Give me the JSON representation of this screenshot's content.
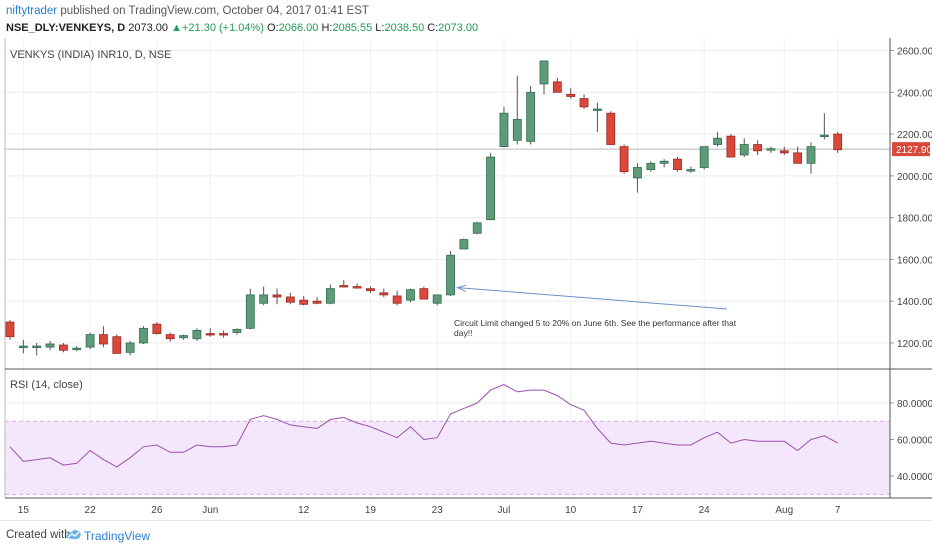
{
  "header": {
    "author": "niftytrader",
    "published_text": "published on TradingView.com, October 04, 2017 01:41 EST",
    "symbol": "NSE_DLY:VENKEYS, D",
    "last": "2073.00",
    "change": "+21.30 (+1.04%)",
    "open_label": "O:",
    "open": "2066.00",
    "high_label": "H:",
    "high": "2085.55",
    "low_label": "L:",
    "low": "2038.50",
    "close_label": "C:",
    "close": "2073.00"
  },
  "footer": {
    "created_with": "Created with",
    "brand": "TradingView"
  },
  "chart_data": {
    "type": "candlestick",
    "title": "VENKYS (INDIA) INR10, D, NSE",
    "price_axis": {
      "ylim": [
        1080,
        2660
      ],
      "ticks": [
        1200,
        1400,
        1600,
        1800,
        2000,
        2200,
        2400,
        2600
      ],
      "tick_labels": [
        "1200.00",
        "1400.00",
        "1600.00",
        "1800.00",
        "2000.00",
        "2200.00",
        "2400.00",
        "2600.00"
      ]
    },
    "last_price_label": "2127.90",
    "last_price": 2127.9,
    "x_labels": [
      {
        "bar": 1,
        "text": "15"
      },
      {
        "bar": 6,
        "text": "22"
      },
      {
        "bar": 11,
        "text": "26"
      },
      {
        "bar": 15,
        "text": "Jun"
      },
      {
        "bar": 22,
        "text": "12"
      },
      {
        "bar": 27,
        "text": "19"
      },
      {
        "bar": 32,
        "text": "23"
      },
      {
        "bar": 37,
        "text": "Jul"
      },
      {
        "bar": 42,
        "text": "10"
      },
      {
        "bar": 47,
        "text": "17"
      },
      {
        "bar": 52,
        "text": "24"
      },
      {
        "bar": 58,
        "text": "Aug"
      },
      {
        "bar": 62,
        "text": "7"
      }
    ],
    "bars": [
      {
        "o": 1300,
        "h": 1310,
        "l": 1215,
        "c": 1230
      },
      {
        "o": 1180,
        "h": 1215,
        "l": 1150,
        "c": 1185
      },
      {
        "o": 1180,
        "h": 1200,
        "l": 1140,
        "c": 1185
      },
      {
        "o": 1180,
        "h": 1210,
        "l": 1165,
        "c": 1195
      },
      {
        "o": 1190,
        "h": 1200,
        "l": 1155,
        "c": 1165
      },
      {
        "o": 1170,
        "h": 1185,
        "l": 1160,
        "c": 1175
      },
      {
        "o": 1180,
        "h": 1250,
        "l": 1170,
        "c": 1240
      },
      {
        "o": 1240,
        "h": 1280,
        "l": 1180,
        "c": 1195
      },
      {
        "o": 1230,
        "h": 1240,
        "l": 1150,
        "c": 1150
      },
      {
        "o": 1155,
        "h": 1210,
        "l": 1140,
        "c": 1200
      },
      {
        "o": 1200,
        "h": 1280,
        "l": 1195,
        "c": 1270
      },
      {
        "o": 1290,
        "h": 1300,
        "l": 1240,
        "c": 1245
      },
      {
        "o": 1240,
        "h": 1250,
        "l": 1205,
        "c": 1220
      },
      {
        "o": 1225,
        "h": 1240,
        "l": 1215,
        "c": 1235
      },
      {
        "o": 1220,
        "h": 1270,
        "l": 1210,
        "c": 1260
      },
      {
        "o": 1245,
        "h": 1270,
        "l": 1230,
        "c": 1240
      },
      {
        "o": 1245,
        "h": 1260,
        "l": 1225,
        "c": 1240
      },
      {
        "o": 1250,
        "h": 1270,
        "l": 1240,
        "c": 1265
      },
      {
        "o": 1270,
        "h": 1460,
        "l": 1265,
        "c": 1430
      },
      {
        "o": 1390,
        "h": 1470,
        "l": 1380,
        "c": 1430
      },
      {
        "o": 1430,
        "h": 1460,
        "l": 1385,
        "c": 1420
      },
      {
        "o": 1420,
        "h": 1440,
        "l": 1385,
        "c": 1395
      },
      {
        "o": 1405,
        "h": 1425,
        "l": 1380,
        "c": 1385
      },
      {
        "o": 1400,
        "h": 1420,
        "l": 1385,
        "c": 1390
      },
      {
        "o": 1390,
        "h": 1480,
        "l": 1385,
        "c": 1460
      },
      {
        "o": 1475,
        "h": 1500,
        "l": 1465,
        "c": 1470
      },
      {
        "o": 1470,
        "h": 1485,
        "l": 1460,
        "c": 1465
      },
      {
        "o": 1460,
        "h": 1470,
        "l": 1440,
        "c": 1450
      },
      {
        "o": 1440,
        "h": 1460,
        "l": 1420,
        "c": 1430
      },
      {
        "o": 1425,
        "h": 1450,
        "l": 1380,
        "c": 1390
      },
      {
        "o": 1405,
        "h": 1460,
        "l": 1395,
        "c": 1455
      },
      {
        "o": 1460,
        "h": 1470,
        "l": 1410,
        "c": 1410
      },
      {
        "o": 1390,
        "h": 1430,
        "l": 1380,
        "c": 1430
      },
      {
        "o": 1430,
        "h": 1640,
        "l": 1425,
        "c": 1620
      },
      {
        "o": 1650,
        "h": 1700,
        "l": 1650,
        "c": 1695
      },
      {
        "o": 1725,
        "h": 1780,
        "l": 1720,
        "c": 1775
      },
      {
        "o": 1790,
        "h": 2110,
        "l": 1790,
        "c": 2090
      },
      {
        "o": 2140,
        "h": 2330,
        "l": 2140,
        "c": 2300
      },
      {
        "o": 2170,
        "h": 2480,
        "l": 2150,
        "c": 2270
      },
      {
        "o": 2165,
        "h": 2430,
        "l": 2150,
        "c": 2400
      },
      {
        "o": 2440,
        "h": 2550,
        "l": 2390,
        "c": 2550
      },
      {
        "o": 2450,
        "h": 2470,
        "l": 2400,
        "c": 2400
      },
      {
        "o": 2390,
        "h": 2420,
        "l": 2370,
        "c": 2380
      },
      {
        "o": 2370,
        "h": 2390,
        "l": 2320,
        "c": 2330
      },
      {
        "o": 2320,
        "h": 2350,
        "l": 2210,
        "c": 2320
      },
      {
        "o": 2300,
        "h": 2310,
        "l": 2180,
        "c": 2150
      },
      {
        "o": 2140,
        "h": 2150,
        "l": 2010,
        "c": 2020
      },
      {
        "o": 1990,
        "h": 2060,
        "l": 1920,
        "c": 2040
      },
      {
        "o": 2030,
        "h": 2070,
        "l": 2020,
        "c": 2060
      },
      {
        "o": 2060,
        "h": 2080,
        "l": 2040,
        "c": 2070
      },
      {
        "o": 2080,
        "h": 2090,
        "l": 2020,
        "c": 2030
      },
      {
        "o": 2025,
        "h": 2045,
        "l": 2015,
        "c": 2030
      },
      {
        "o": 2040,
        "h": 2140,
        "l": 2030,
        "c": 2140
      },
      {
        "o": 2150,
        "h": 2210,
        "l": 2140,
        "c": 2180
      },
      {
        "o": 2190,
        "h": 2200,
        "l": 2090,
        "c": 2090
      },
      {
        "o": 2100,
        "h": 2180,
        "l": 2090,
        "c": 2150
      },
      {
        "o": 2150,
        "h": 2170,
        "l": 2100,
        "c": 2120
      },
      {
        "o": 2130,
        "h": 2140,
        "l": 2110,
        "c": 2130
      },
      {
        "o": 2120,
        "h": 2140,
        "l": 2100,
        "c": 2110
      },
      {
        "o": 2110,
        "h": 2140,
        "l": 2060,
        "c": 2060
      },
      {
        "o": 2060,
        "h": 2160,
        "l": 2010,
        "c": 2140
      },
      {
        "o": 2190,
        "h": 2300,
        "l": 2175,
        "c": 2195
      },
      {
        "o": 2200,
        "h": 2210,
        "l": 2110,
        "c": 2125
      }
    ],
    "annotation": {
      "text": "Circuit Limit changed 5 to 20% on June 6th. See the performance after that day!!",
      "arrow_target_bar": 33,
      "arrow_target_price": 1465
    },
    "rsi": {
      "label": "RSI (14, close)",
      "ylim": [
        28,
        98
      ],
      "ticks": [
        40,
        60,
        80
      ],
      "tick_labels": [
        "40.0000",
        "60.0000",
        "80.0000"
      ],
      "band_upper": 70,
      "band_lower": 30,
      "values": [
        56,
        48,
        49,
        50,
        46,
        47,
        54,
        49,
        45,
        50,
        56,
        57,
        53,
        53,
        57,
        56,
        56,
        57,
        71,
        73,
        71,
        68,
        67,
        66,
        71,
        72,
        69,
        67,
        64,
        61,
        67,
        60,
        61,
        74,
        77,
        80,
        87,
        90,
        86,
        87,
        87,
        84,
        79,
        76,
        66,
        58,
        57,
        58,
        59,
        58,
        57,
        57,
        61,
        64,
        58,
        60,
        59,
        59,
        59,
        54,
        60,
        62,
        58
      ]
    }
  }
}
